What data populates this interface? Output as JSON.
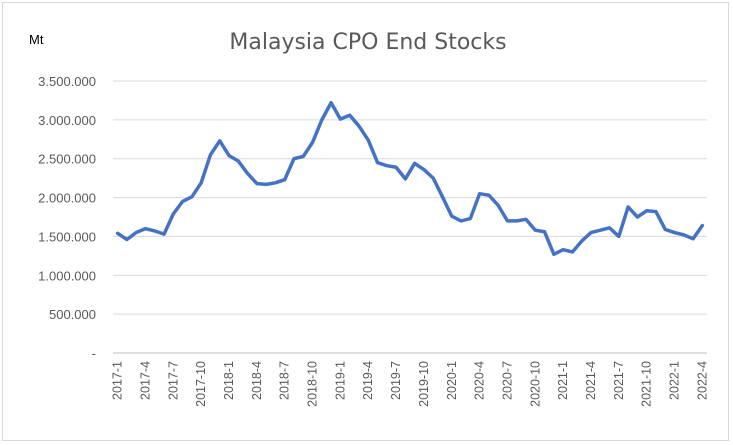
{
  "chart_data": {
    "type": "line",
    "title": "Malaysia CPO End Stocks",
    "unit_label": "Mt",
    "xlabel": "",
    "ylabel": "",
    "ylim": [
      0,
      3500000
    ],
    "grid": true,
    "legend": "none",
    "line_color": "#4472c4",
    "y_ticks": [
      {
        "value": 0,
        "label": "-"
      },
      {
        "value": 500000,
        "label": "500.000"
      },
      {
        "value": 1000000,
        "label": "1.000.000"
      },
      {
        "value": 1500000,
        "label": "1.500.000"
      },
      {
        "value": 2000000,
        "label": "2.000.000"
      },
      {
        "value": 2500000,
        "label": "2.500.000"
      },
      {
        "value": 3000000,
        "label": "3.000.000"
      },
      {
        "value": 3500000,
        "label": "3.500.000"
      }
    ],
    "x_tick_labels": [
      "2017-1",
      "2017-4",
      "2017-7",
      "2017-10",
      "2018-1",
      "2018-4",
      "2018-7",
      "2018-10",
      "2019-1",
      "2019-4",
      "2019-7",
      "2019-10",
      "2020-1",
      "2020-4",
      "2020-7",
      "2020-10",
      "2021-1",
      "2021-4",
      "2021-7",
      "2021-10",
      "2022-1",
      "2022-4"
    ],
    "series": [
      {
        "x": [
          "2017-1",
          "2017-2",
          "2017-3",
          "2017-4",
          "2017-5",
          "2017-6",
          "2017-7",
          "2017-8",
          "2017-9",
          "2017-10",
          "2017-11",
          "2017-12",
          "2018-1",
          "2018-2",
          "2018-3",
          "2018-4",
          "2018-5",
          "2018-6",
          "2018-7",
          "2018-8",
          "2018-9",
          "2018-10",
          "2018-11",
          "2018-12",
          "2019-1",
          "2019-2",
          "2019-3",
          "2019-4",
          "2019-5",
          "2019-6",
          "2019-7",
          "2019-8",
          "2019-9",
          "2019-10",
          "2019-11",
          "2019-12",
          "2020-1",
          "2020-2",
          "2020-3",
          "2020-4",
          "2020-5",
          "2020-6",
          "2020-7",
          "2020-8",
          "2020-9",
          "2020-10",
          "2020-11",
          "2020-12",
          "2021-1",
          "2021-2",
          "2021-3",
          "2021-4",
          "2021-5",
          "2021-6",
          "2021-7",
          "2021-8",
          "2021-9",
          "2021-10",
          "2021-11",
          "2021-12",
          "2022-1",
          "2022-2",
          "2022-3",
          "2022-4"
        ],
        "values": [
          1540000,
          1460000,
          1550000,
          1600000,
          1570000,
          1530000,
          1790000,
          1950000,
          2010000,
          2190000,
          2550000,
          2730000,
          2540000,
          2470000,
          2310000,
          2180000,
          2170000,
          2190000,
          2230000,
          2500000,
          2530000,
          2710000,
          3000000,
          3220000,
          3010000,
          3060000,
          2920000,
          2740000,
          2450000,
          2410000,
          2390000,
          2240000,
          2440000,
          2360000,
          2250000,
          2010000,
          1760000,
          1700000,
          1730000,
          2050000,
          2030000,
          1900000,
          1700000,
          1700000,
          1720000,
          1580000,
          1560000,
          1270000,
          1330000,
          1300000,
          1440000,
          1550000,
          1580000,
          1610000,
          1500000,
          1880000,
          1750000,
          1830000,
          1820000,
          1590000,
          1550000,
          1520000,
          1470000,
          1640000
        ]
      }
    ]
  }
}
